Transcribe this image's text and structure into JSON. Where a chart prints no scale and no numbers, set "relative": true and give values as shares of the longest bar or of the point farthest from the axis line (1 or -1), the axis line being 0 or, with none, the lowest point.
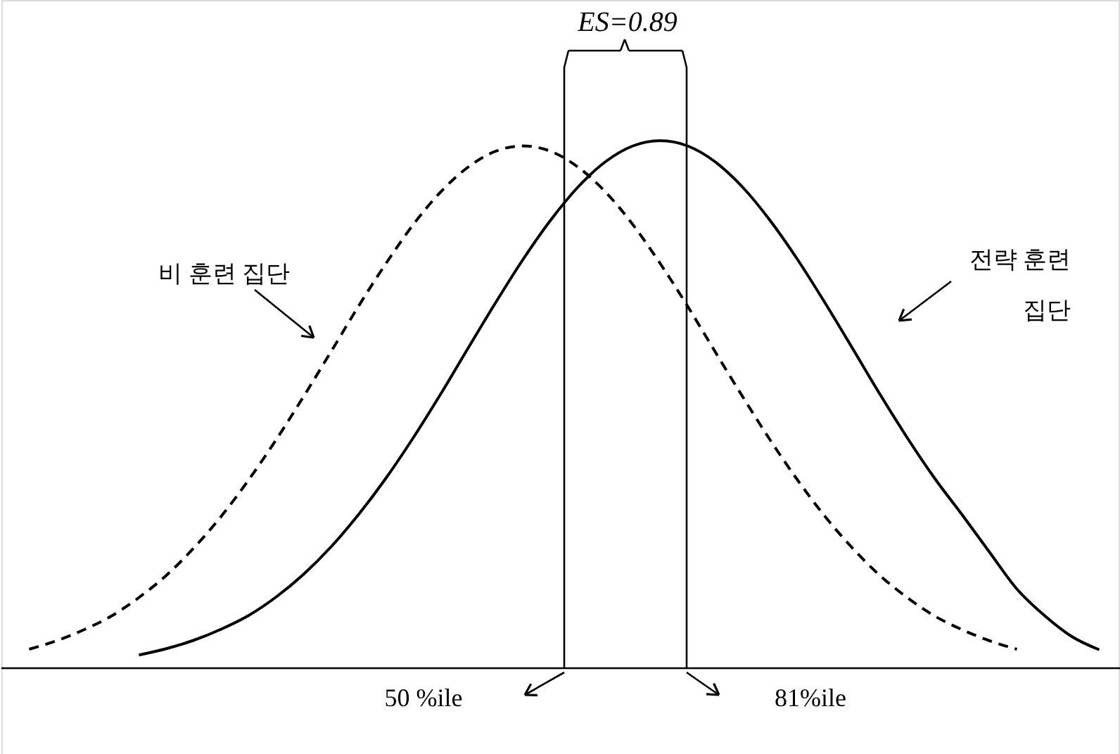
{
  "chart_data": {
    "type": "line",
    "relative": true,
    "title": "ES=0.89",
    "marker": "none",
    "categories": [
      null,
      null,
      null,
      null,
      null,
      null,
      null,
      null,
      null,
      null,
      null,
      null,
      null,
      null,
      null,
      null,
      null,
      null,
      null,
      null,
      null,
      null,
      null,
      null,
      null,
      null,
      null,
      null,
      null,
      null,
      null,
      null,
      null,
      null,
      null,
      null,
      null,
      null,
      null,
      null
    ],
    "series": [
      {
        "name": "비 훈련 집단",
        "color": "#000000",
        "line_style": "dashed",
        "values": [
          0.036,
          0.052,
          0.073,
          0.099,
          0.134,
          0.176,
          0.228,
          0.288,
          0.357,
          0.433,
          0.515,
          0.6,
          0.686,
          0.767,
          0.841,
          0.903,
          0.95,
          0.98,
          0.99,
          0.98,
          0.95,
          0.903,
          0.841,
          0.767,
          0.686,
          0.6,
          0.515,
          0.433,
          0.357,
          0.288,
          0.228,
          0.176,
          0.134,
          0.099,
          0.073,
          0.052,
          0.036,
          null,
          null,
          null
        ]
      },
      {
        "name": "전략 훈련 집단",
        "color": "#000000",
        "line_style": "solid",
        "values": [
          null,
          null,
          null,
          null,
          0.025,
          0.037,
          0.053,
          0.074,
          0.1,
          0.135,
          0.178,
          0.23,
          0.291,
          0.36,
          0.437,
          0.52,
          0.607,
          0.693,
          0.775,
          0.849,
          0.912,
          0.96,
          0.99,
          1.0,
          0.99,
          0.96,
          0.912,
          0.849,
          0.775,
          0.693,
          0.607,
          0.52,
          0.437,
          0.36,
          0.291,
          0.22,
          0.15,
          0.1,
          0.06,
          0.035
        ]
      }
    ],
    "annotations": [
      "50 %ile",
      "81%ile"
    ]
  }
}
